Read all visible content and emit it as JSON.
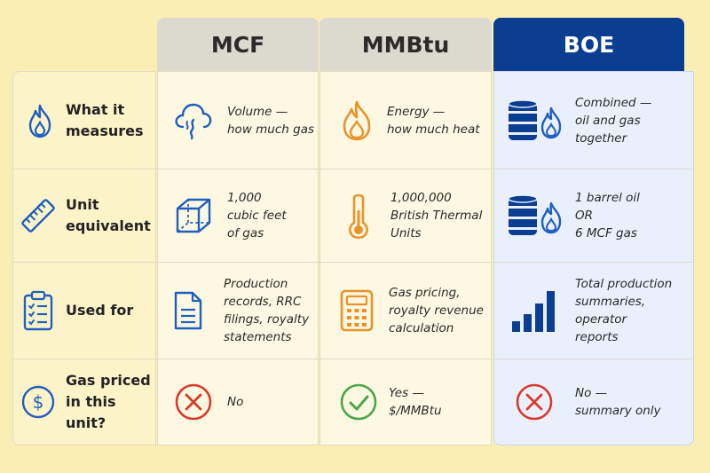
{
  "columns": {
    "mcf": "MCF",
    "mmbtu": "MMBtu",
    "boe": "BOE"
  },
  "rows": [
    {
      "label": "What it\nmeasures",
      "label_icon": "flame-icon",
      "mcf": {
        "text": "Volume —\nhow much gas",
        "icon": "gas-cloud-icon"
      },
      "mmbtu": {
        "text": "Energy —\nhow much heat",
        "icon": "flame-icon"
      },
      "boe": {
        "text": "Combined —\noil and gas together",
        "icon": "oil-barrel-flame-icon"
      }
    },
    {
      "label": "Unit\nequivalent",
      "label_icon": "ruler-icon",
      "mcf": {
        "text": "1,000\ncubic feet\nof gas",
        "icon": "cube-icon"
      },
      "mmbtu": {
        "text": "1,000,000\nBritish Thermal\nUnits",
        "icon": "thermometer-icon"
      },
      "boe": {
        "text": "1 barrel oil\nOR\n6 MCF gas",
        "icon": "oil-barrel-flame-icon"
      }
    },
    {
      "label": "Used for",
      "label_icon": "clipboard-checklist-icon",
      "mcf": {
        "text": "Production\nrecords, RRC\nfilings, royalty\nstatements",
        "icon": "document-icon"
      },
      "mmbtu": {
        "text": "Gas pricing,\nroyalty revenue\ncalculation",
        "icon": "calculator-icon"
      },
      "boe": {
        "text": "Total production\nsummaries,\noperator\nreports",
        "icon": "bar-chart-icon"
      }
    },
    {
      "label": "Gas priced\nin this unit?",
      "label_icon": "dollar-circle-icon",
      "mcf": {
        "text": "No",
        "icon": "x-circle-icon"
      },
      "mmbtu": {
        "text": "Yes —\n$/MMBtu",
        "icon": "check-circle-icon"
      },
      "boe": {
        "text": "No —\nsummary only",
        "icon": "x-circle-icon"
      }
    }
  ],
  "colors": {
    "navy": "#0b3d91",
    "blue": "#1f5fbf",
    "orange": "#e8942a",
    "red": "#d93a2b",
    "green": "#4aa64a",
    "background": "#fbeeb5"
  }
}
